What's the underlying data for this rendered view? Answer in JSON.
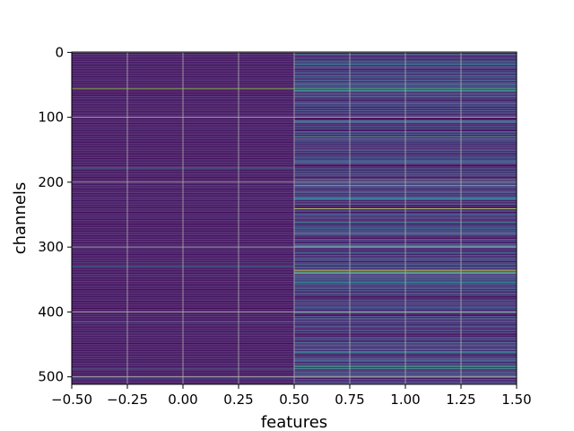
{
  "chart_data": {
    "type": "heatmap",
    "title": "",
    "xlabel": "features",
    "ylabel": "channels",
    "xlim": [
      -0.5,
      1.5
    ],
    "ylim": [
      511.5,
      -0.5
    ],
    "y_inverted": true,
    "grid": true,
    "colormap": "viridis",
    "columns": [
      {
        "feature": 0,
        "base_level": 0.06,
        "base_variation": 0.025,
        "bright_channels": [
          {
            "channel": 56,
            "value": 0.85
          },
          {
            "channel": 178,
            "value": 0.45
          },
          {
            "channel": 330,
            "value": 0.5
          },
          {
            "channel": 415,
            "value": 0.4
          },
          {
            "channel": 488,
            "value": 0.35
          },
          {
            "channel": 503,
            "value": 0.3
          }
        ]
      },
      {
        "feature": 1,
        "base_level": 0.12,
        "base_variation": 0.12,
        "bright_channels": [
          {
            "channel": 0,
            "value": 0.6
          },
          {
            "channel": 56,
            "value": 0.7
          },
          {
            "channel": 59,
            "value": 0.55
          },
          {
            "channel": 130,
            "value": 0.6
          },
          {
            "channel": 168,
            "value": 0.45
          },
          {
            "channel": 196,
            "value": 0.55
          },
          {
            "channel": 205,
            "value": 0.6
          },
          {
            "channel": 226,
            "value": 0.5
          },
          {
            "channel": 241,
            "value": 0.9
          },
          {
            "channel": 262,
            "value": 0.45
          },
          {
            "channel": 280,
            "value": 0.5
          },
          {
            "channel": 298,
            "value": 0.45
          },
          {
            "channel": 336,
            "value": 0.95
          },
          {
            "channel": 340,
            "value": 0.8
          },
          {
            "channel": 355,
            "value": 0.45
          },
          {
            "channel": 401,
            "value": 0.45
          },
          {
            "channel": 463,
            "value": 0.5
          },
          {
            "channel": 484,
            "value": 0.65
          },
          {
            "channel": 487,
            "value": 0.55
          },
          {
            "channel": 498,
            "value": 0.5
          }
        ]
      }
    ],
    "x_ticks": [
      "−0.50",
      "−0.25",
      "0.00",
      "0.25",
      "0.50",
      "0.75",
      "1.00",
      "1.25",
      "1.50"
    ],
    "x_tick_values": [
      -0.5,
      -0.25,
      0,
      0.25,
      0.5,
      0.75,
      1.0,
      1.25,
      1.5
    ],
    "y_ticks": [
      "0",
      "100",
      "200",
      "300",
      "400",
      "500"
    ],
    "y_tick_values": [
      0,
      100,
      200,
      300,
      400,
      500
    ],
    "n_channels": 512
  }
}
